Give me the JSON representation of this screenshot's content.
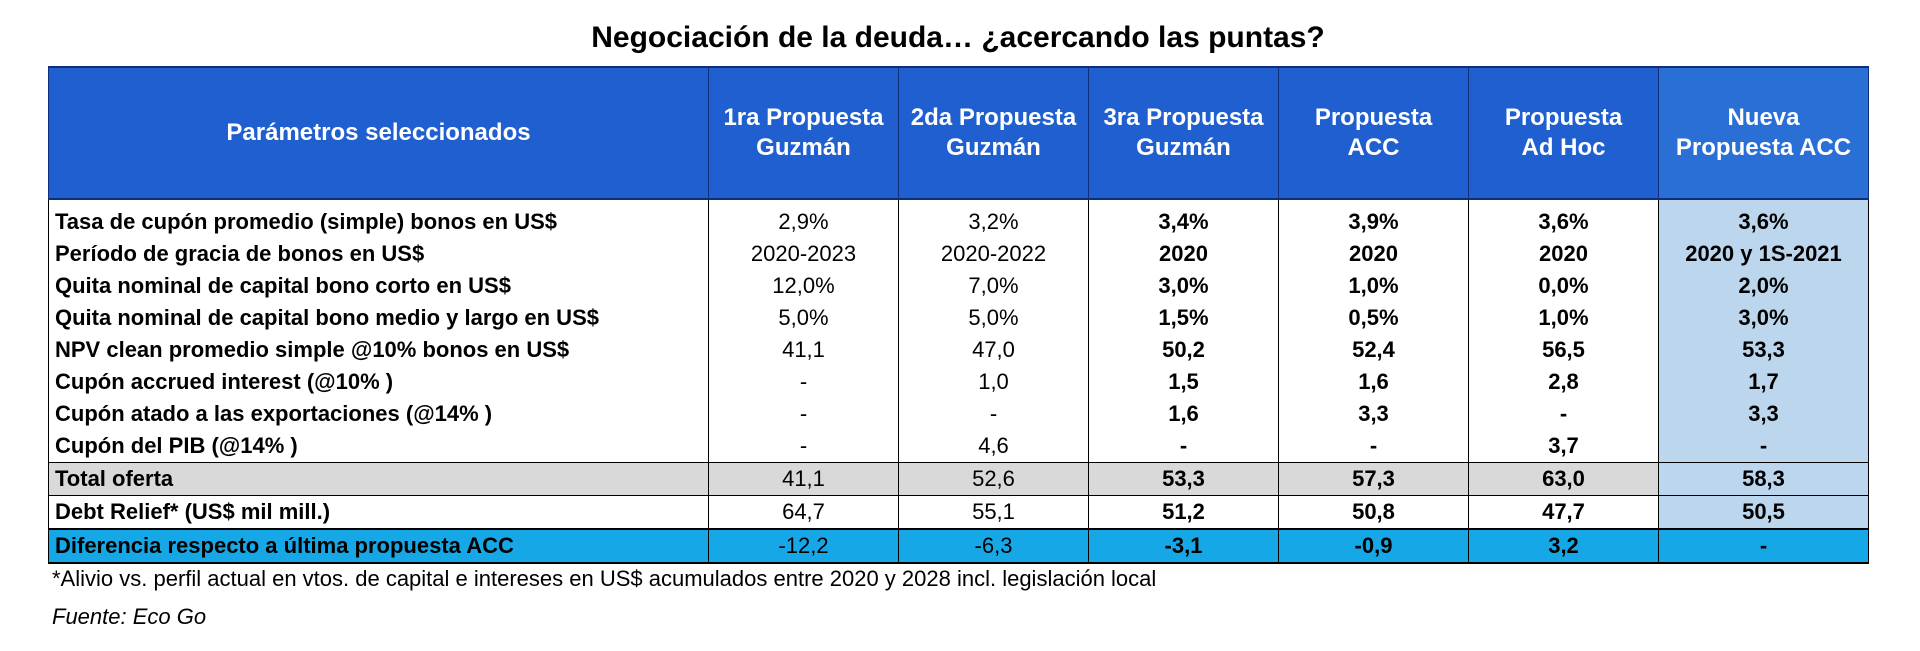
{
  "title": "Negociación de la deuda… ¿acercando las puntas?",
  "columns": [
    {
      "line1": "Parámetros seleccionados",
      "line2": ""
    },
    {
      "line1": "1ra Propuesta",
      "line2": "Guzmán"
    },
    {
      "line1": "2da Propuesta",
      "line2": "Guzmán"
    },
    {
      "line1": "3ra Propuesta",
      "line2": "Guzmán"
    },
    {
      "line1": "Propuesta",
      "line2": "ACC"
    },
    {
      "line1": "Propuesta",
      "line2": "Ad Hoc"
    },
    {
      "line1": "Nueva",
      "line2": "Propuesta ACC"
    }
  ],
  "rows": [
    {
      "label": "Tasa de cupón promedio (simple) bonos en US$",
      "values": [
        "2,9%",
        "3,2%",
        "3,4%",
        "3,9%",
        "3,6%",
        "3,6%"
      ]
    },
    {
      "label": "Período de gracia de bonos en US$",
      "values": [
        "2020-2023",
        "2020-2022",
        "2020",
        "2020",
        "2020",
        "2020 y 1S-2021"
      ]
    },
    {
      "label": "Quita nominal de capital bono corto en US$",
      "values": [
        "12,0%",
        "7,0%",
        "3,0%",
        "1,0%",
        "0,0%",
        "2,0%"
      ]
    },
    {
      "label": "Quita nominal de capital bono medio y largo en US$",
      "values": [
        "5,0%",
        "5,0%",
        "1,5%",
        "0,5%",
        "1,0%",
        "3,0%"
      ]
    },
    {
      "label": "NPV clean promedio simple @10%  bonos en US$",
      "values": [
        "41,1",
        "47,0",
        "50,2",
        "52,4",
        "56,5",
        "53,3"
      ]
    },
    {
      "label": "Cupón accrued interest (@10% )",
      "values": [
        "-",
        "1,0",
        "1,5",
        "1,6",
        "2,8",
        "1,7"
      ]
    },
    {
      "label": "Cupón atado a las exportaciones (@14% )",
      "values": [
        "-",
        "-",
        "1,6",
        "3,3",
        "-",
        "3,3"
      ]
    },
    {
      "label": "Cupón del PIB (@14% )",
      "values": [
        "-",
        "4,6",
        "-",
        "-",
        "3,7",
        "-"
      ]
    },
    {
      "label": "Total oferta",
      "values": [
        "41,1",
        "52,6",
        "53,3",
        "57,3",
        "63,0",
        "58,3"
      ]
    },
    {
      "label": "Debt Relief* (US$ mil mill.)",
      "values": [
        "64,7",
        "55,1",
        "51,2",
        "50,8",
        "47,7",
        "50,5"
      ]
    },
    {
      "label": "Diferencia respecto a última propuesta ACC",
      "values": [
        "-12,2",
        "-6,3",
        "-3,1",
        "-0,9",
        "3,2",
        "-"
      ]
    }
  ],
  "footnote": "*Alivio vs. perfil actual en vtos. de capital e intereses en US$ acumulados entre 2020 y 2028 incl. legislación local",
  "source": "Fuente: Eco Go",
  "colors": {
    "header": "#1f5fcf",
    "highlight_col": "#bcd6ee",
    "total_row": "#d9d9d9",
    "diff_row": "#16a8e6"
  }
}
